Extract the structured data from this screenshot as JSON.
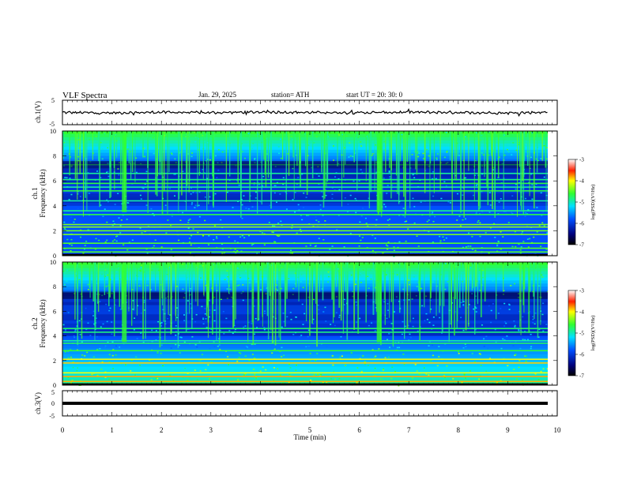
{
  "header": {
    "title": "VLF  Spectra",
    "date": "Jan. 29, 2025",
    "station": "station= ATH",
    "start": "start  UT  =   20: 30: 0"
  },
  "chart_data": [
    {
      "type": "line",
      "panel": "ch1-waveform",
      "ylabel": "ch.1(V)",
      "ylim": [
        -5,
        5
      ],
      "y_ticks": [
        "5",
        "-5"
      ],
      "x": [
        0,
        1,
        2,
        3,
        4,
        5,
        6,
        7,
        8,
        9,
        9.8
      ],
      "values": [
        0,
        -0.2,
        0.1,
        -0.1,
        0.2,
        0,
        -0.1,
        0.1,
        0,
        -0.2,
        0.1
      ]
    },
    {
      "type": "heatmap",
      "panel": "ch1-spectrogram",
      "ylabel": "ch.1\nFrequency  (kHz)",
      "ylim": [
        0,
        10
      ],
      "y_ticks": [
        "0",
        "2",
        "4",
        "6",
        "8",
        "10"
      ],
      "bands_khz": [
        0.3,
        0.6,
        1.0,
        1.7,
        2.0,
        2.3,
        2.5,
        3.3,
        3.6,
        4.4,
        5.2,
        5.5,
        5.8,
        6.1,
        6.6,
        7.3
      ],
      "colorbar": {
        "label": "log(PSD)(V²/Hz)",
        "ticks": [
          "-3",
          "-4",
          "-5",
          "-6",
          "-7"
        ],
        "range": [
          -7,
          -3
        ]
      }
    },
    {
      "type": "heatmap",
      "panel": "ch2-spectrogram",
      "ylabel": "ch.2\nFrequency  (kHz)",
      "ylim": [
        0,
        10
      ],
      "y_ticks": [
        "0",
        "2",
        "4",
        "6",
        "8",
        "10"
      ],
      "bands_khz": [
        0.3,
        0.7,
        1.0,
        1.8,
        2.1,
        2.8,
        3.4,
        3.6,
        4.3,
        4.6
      ],
      "colorbar": {
        "label": "log(PSD)(V²/Hz)",
        "ticks": [
          "-3",
          "-4",
          "-5",
          "-6",
          "-7"
        ],
        "range": [
          -7,
          -3
        ]
      }
    },
    {
      "type": "line",
      "panel": "ch3-waveform",
      "ylabel": "ch.3(V)",
      "ylim": [
        -5,
        5
      ],
      "y_ticks": [
        "5",
        "0",
        "-5"
      ],
      "x": [
        0,
        9.8
      ],
      "values": [
        0,
        0
      ]
    }
  ],
  "xaxis": {
    "label": "Time  (min)",
    "range": [
      0,
      10
    ],
    "ticks": [
      "0",
      "1",
      "2",
      "3",
      "4",
      "5",
      "6",
      "7",
      "8",
      "9",
      "10"
    ]
  }
}
